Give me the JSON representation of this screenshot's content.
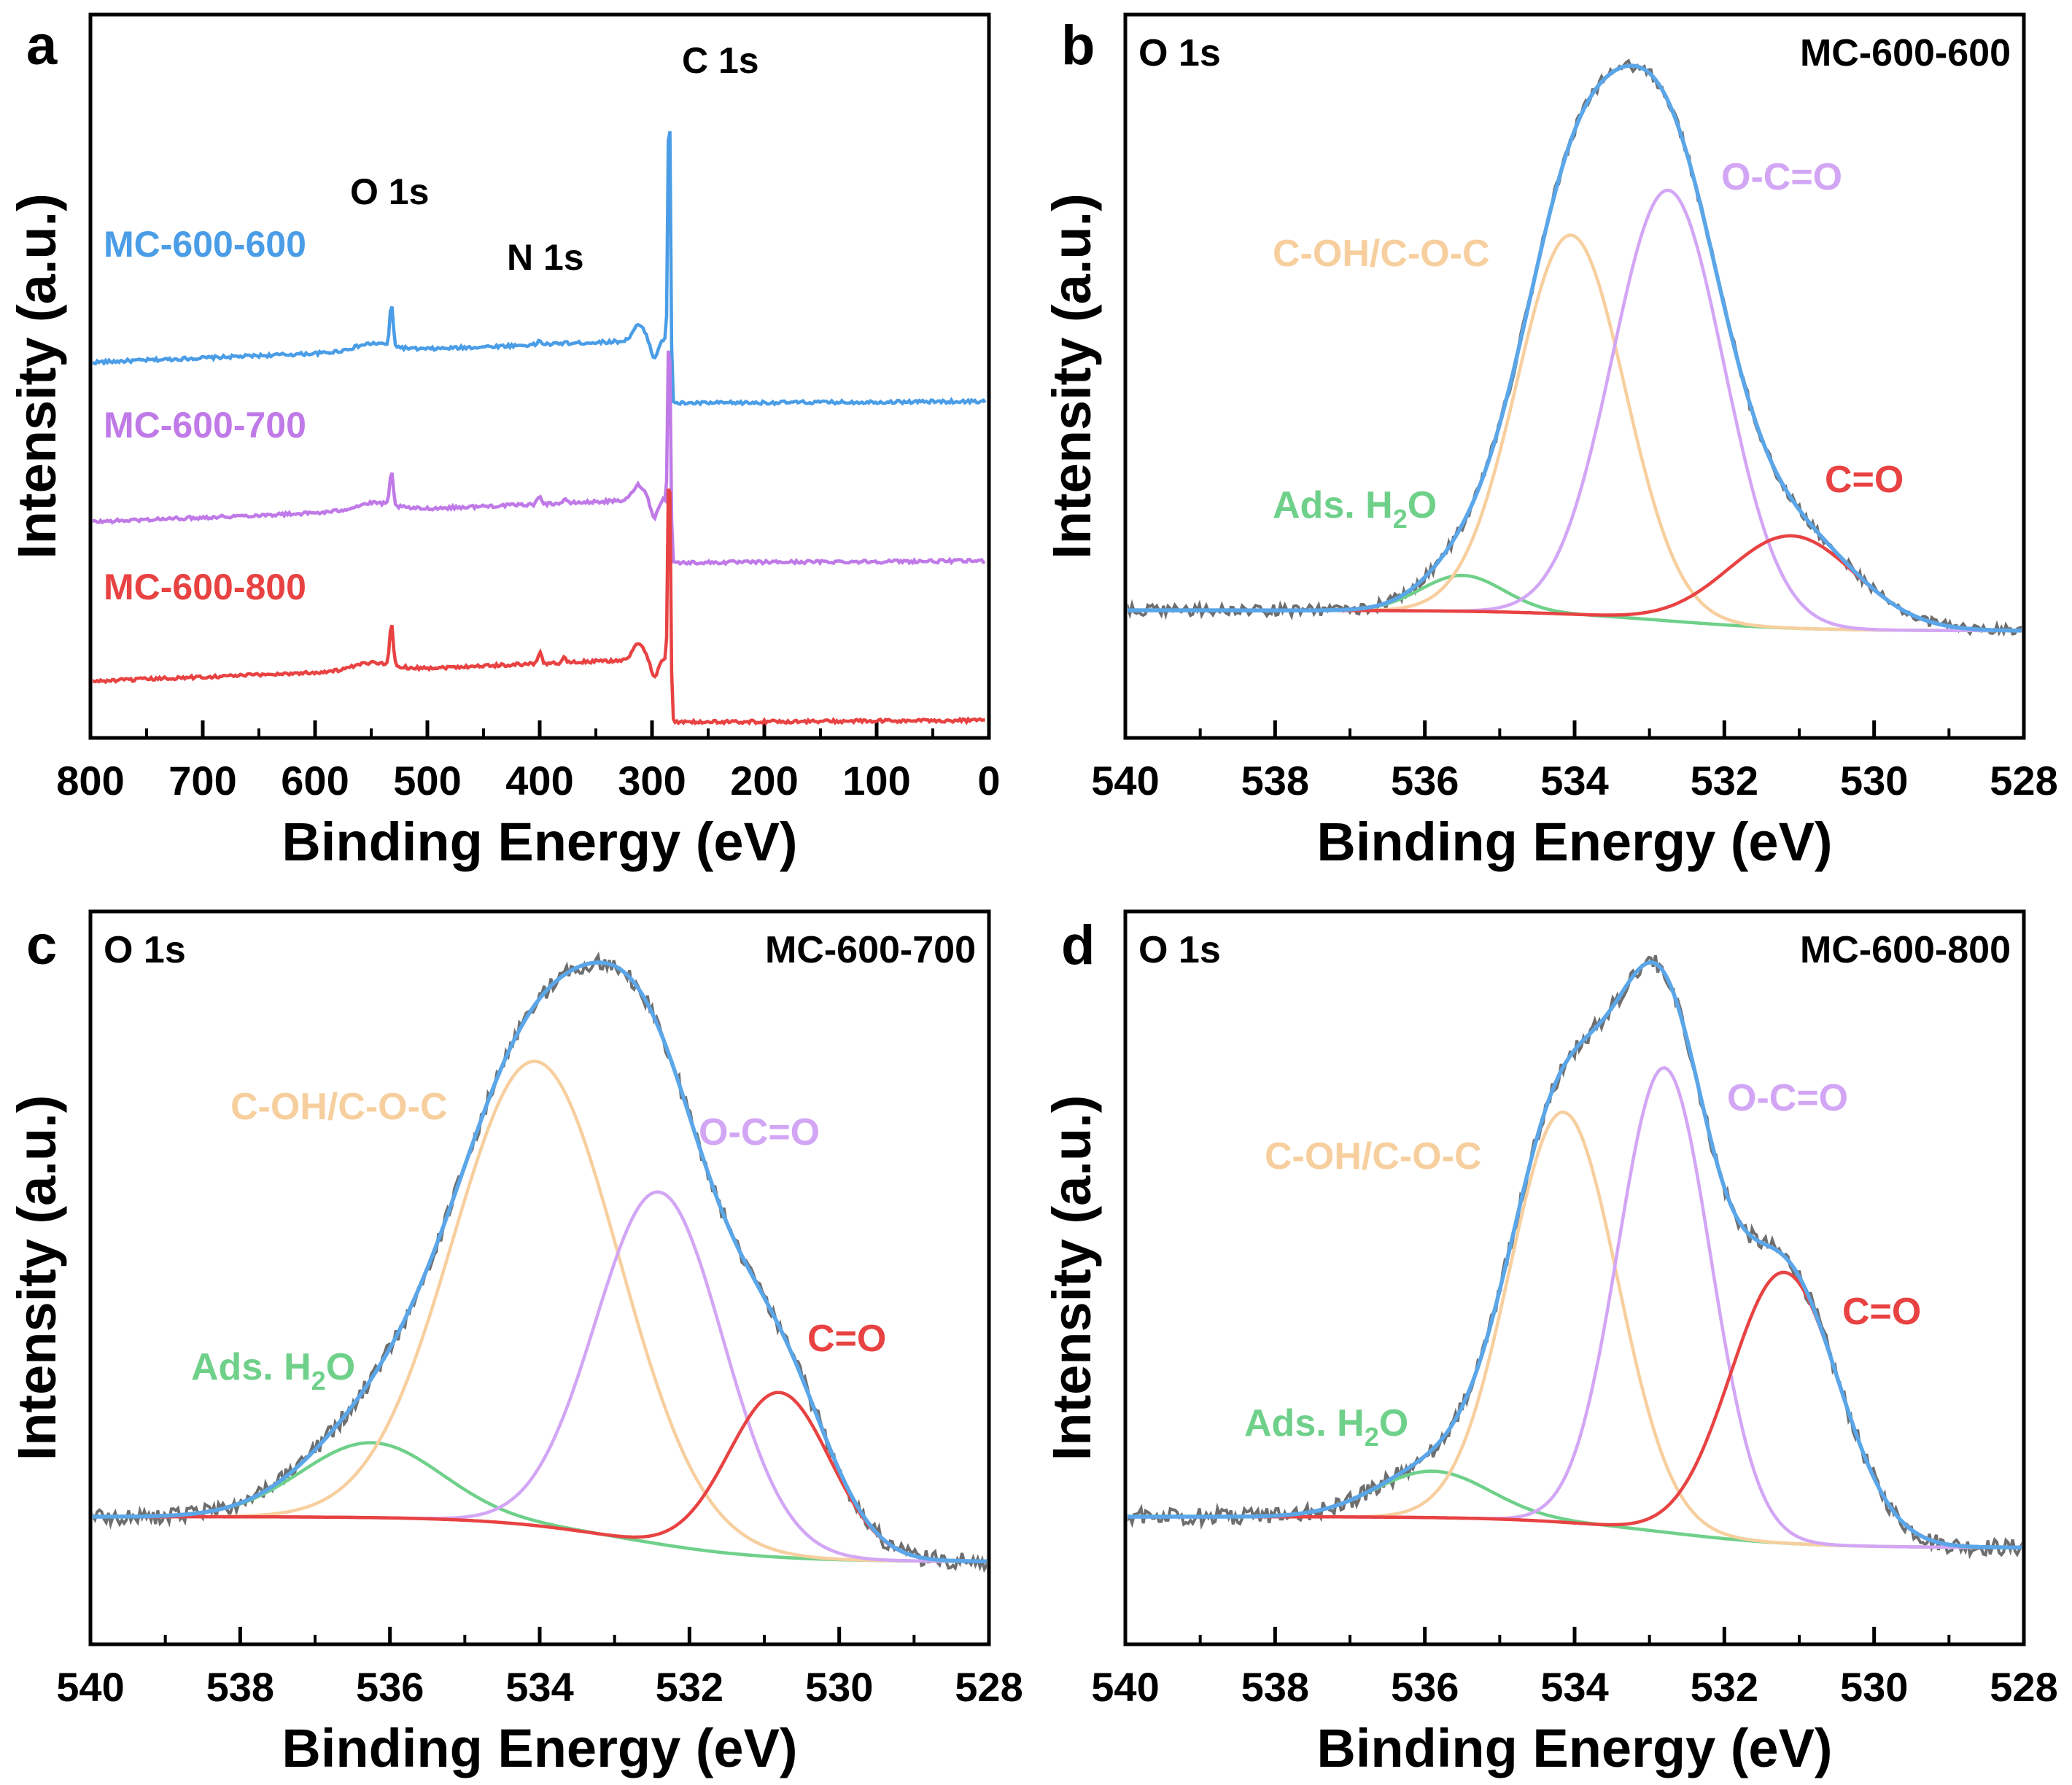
{
  "colors": {
    "blue": "#4a9de6",
    "purple": "#c07ae8",
    "red": "#e84242",
    "orange": "#f7cf9e",
    "violet": "#d3a6f5",
    "green": "#6fd08a",
    "gray": "#6e6e6e",
    "envelope": "#5aa6e8"
  },
  "chart_data": [
    {
      "panel": "a",
      "type": "line",
      "xlabel": "Binding Energy (eV)",
      "ylabel": "Intensity (a.u.)",
      "xlim": [
        800,
        0
      ],
      "x_reversed": true,
      "xticks": [
        "800",
        "700",
        "600",
        "500",
        "400",
        "300",
        "200",
        "100",
        "0"
      ],
      "peak_labels": [
        {
          "text": "O 1s",
          "x": 532
        },
        {
          "text": "N 1s",
          "x": 400
        },
        {
          "text": "C 1s",
          "x": 284
        }
      ],
      "series": [
        {
          "name": "MC-600-600",
          "color": "blue",
          "offset": 2.6,
          "o1s": 0.32,
          "n1s": 0.03,
          "c1s": 2.35,
          "post_drop": -0.32
        },
        {
          "name": "MC-600-700",
          "color": "purple",
          "offset": 1.35,
          "o1s": 0.26,
          "n1s": 0.07,
          "c1s": 1.75,
          "post_drop": -0.32
        },
        {
          "name": "MC-600-800",
          "color": "red",
          "offset": 0.1,
          "o1s": 0.32,
          "n1s": 0.09,
          "c1s": 2.0,
          "post_drop": -0.32
        }
      ]
    },
    {
      "panel": "b",
      "type": "line",
      "title": "O 1s",
      "sample": "MC-600-600",
      "xlabel": "Binding Energy (eV)",
      "ylabel": "Intensity (a.u.)",
      "xlim": [
        540,
        528
      ],
      "x_reversed": true,
      "xticks": [
        "540",
        "538",
        "536",
        "534",
        "532",
        "530",
        "528"
      ],
      "baseline_high": 0.0,
      "baseline_low": -0.04,
      "components": [
        {
          "name": "Ads. H₂O",
          "label_main": "Ads. H",
          "label_sub": "2",
          "label_tail": "O",
          "color": "green",
          "center": 535.5,
          "height": 0.07,
          "fwhm": 1.3
        },
        {
          "name": "C-OH/C-O-C",
          "color": "orange",
          "center": 534.05,
          "height": 0.74,
          "fwhm": 1.7
        },
        {
          "name": "O-C=O",
          "color": "violet",
          "center": 532.75,
          "height": 0.84,
          "fwhm": 1.75
        },
        {
          "name": "C=O",
          "color": "red",
          "center": 531.1,
          "height": 0.18,
          "fwhm": 2.0
        }
      ]
    },
    {
      "panel": "c",
      "type": "line",
      "title": "O 1s",
      "sample": "MC-600-700",
      "xlabel": "Binding Energy (eV)",
      "ylabel": "Intensity (a.u.)",
      "xlim": [
        540,
        528
      ],
      "x_reversed": true,
      "xticks": [
        "540",
        "538",
        "536",
        "534",
        "532",
        "530",
        "528"
      ],
      "baseline_high": 0.0,
      "baseline_low": -0.06,
      "components": [
        {
          "name": "Ads. H₂O",
          "label_main": "Ads. H",
          "label_sub": "2",
          "label_tail": "O",
          "color": "green",
          "center": 536.25,
          "height": 0.1,
          "fwhm": 2.2
        },
        {
          "name": "C-OH/C-O-C",
          "color": "orange",
          "center": 534.05,
          "height": 0.62,
          "fwhm": 2.6
        },
        {
          "name": "O-C=O",
          "color": "violet",
          "center": 532.4,
          "height": 0.47,
          "fwhm": 2.0
        },
        {
          "name": "C=O",
          "color": "red",
          "center": 530.8,
          "height": 0.22,
          "fwhm": 1.6
        }
      ]
    },
    {
      "panel": "d",
      "type": "line",
      "title": "O 1s",
      "sample": "MC-600-800",
      "xlabel": "Binding Energy (eV)",
      "ylabel": "Intensity (a.u.)",
      "xlim": [
        540,
        528
      ],
      "x_reversed": true,
      "xticks": [
        "540",
        "538",
        "536",
        "534",
        "532",
        "530",
        "528"
      ],
      "baseline_high": 0.0,
      "baseline_low": -0.04,
      "components": [
        {
          "name": "Ads. H₂O",
          "label_main": "Ads. H",
          "label_sub": "2",
          "label_tail": "O",
          "color": "green",
          "center": 535.9,
          "height": 0.06,
          "fwhm": 1.8
        },
        {
          "name": "C-OH/C-O-C",
          "color": "orange",
          "center": 534.15,
          "height": 0.53,
          "fwhm": 1.7
        },
        {
          "name": "O-C=O",
          "color": "violet",
          "center": 532.8,
          "height": 0.6,
          "fwhm": 1.45
        },
        {
          "name": "C=O",
          "color": "red",
          "center": 531.2,
          "height": 0.35,
          "fwhm": 1.7
        }
      ]
    }
  ]
}
